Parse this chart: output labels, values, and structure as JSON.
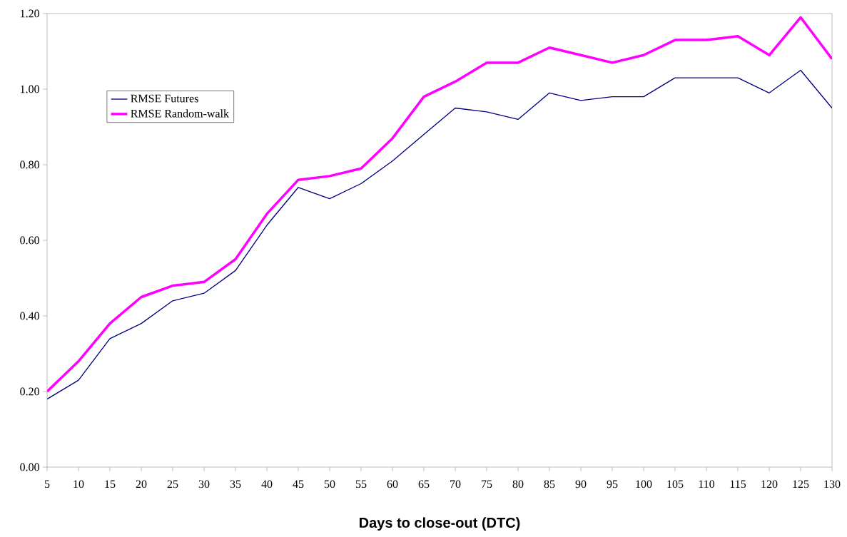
{
  "chart_data": {
    "type": "line",
    "xlabel": "Days to close-out (DTC)",
    "categories": [
      "5",
      "10",
      "15",
      "20",
      "25",
      "30",
      "35",
      "40",
      "45",
      "50",
      "55",
      "60",
      "65",
      "70",
      "75",
      "80",
      "85",
      "90",
      "95",
      "100",
      "105",
      "110",
      "115",
      "120",
      "125",
      "130"
    ],
    "series": [
      {
        "name": "RMSE Futures",
        "color": "#000080",
        "values": [
          0.18,
          0.23,
          0.34,
          0.38,
          0.44,
          0.46,
          0.52,
          0.64,
          0.74,
          0.71,
          0.75,
          0.81,
          0.88,
          0.95,
          0.94,
          0.92,
          0.99,
          0.97,
          0.98,
          0.98,
          1.03,
          1.03,
          1.03,
          0.99,
          1.05,
          0.95
        ]
      },
      {
        "name": "RMSE Random-walk",
        "color": "#ff00ff",
        "values": [
          0.2,
          0.28,
          0.38,
          0.45,
          0.48,
          0.49,
          0.55,
          0.67,
          0.76,
          0.77,
          0.79,
          0.87,
          0.98,
          1.02,
          1.07,
          1.07,
          1.11,
          1.09,
          1.07,
          1.09,
          1.13,
          1.13,
          1.14,
          1.09,
          1.19,
          1.08
        ]
      }
    ],
    "ylim": [
      0,
      1.2
    ],
    "yticks": [
      {
        "value": 0,
        "label": "0.00"
      },
      {
        "value": 0.2,
        "label": "0.20"
      },
      {
        "value": 0.4,
        "label": "0.40"
      },
      {
        "value": 0.6,
        "label": "0.60"
      },
      {
        "value": 0.8,
        "label": "0.80"
      },
      {
        "value": 1.0,
        "label": "1.00"
      },
      {
        "value": 1.2,
        "label": "1.20"
      }
    ],
    "grid": false,
    "legend": "top left",
    "marker": "none",
    "line_style": "solid"
  }
}
